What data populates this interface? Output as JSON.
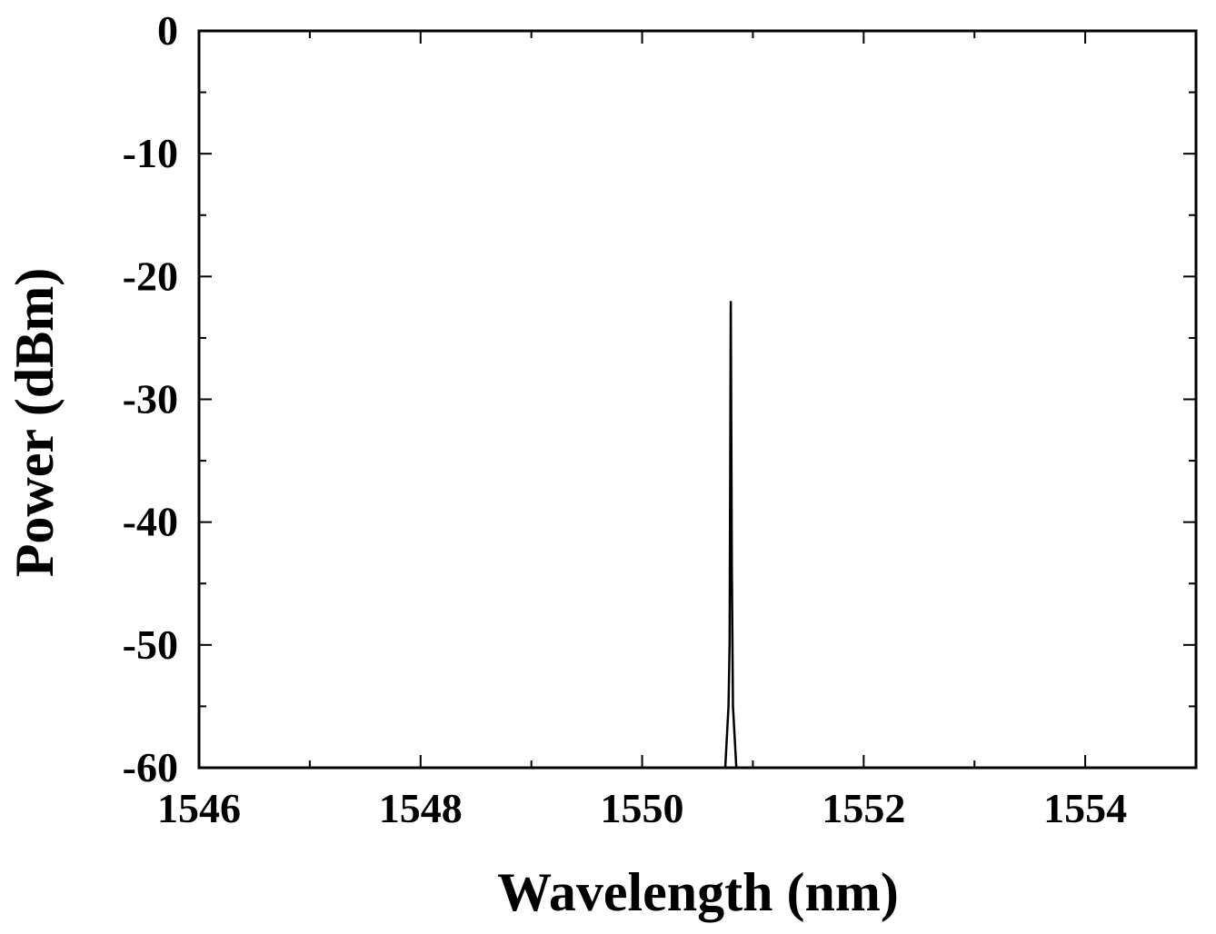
{
  "chart_data": {
    "type": "line",
    "title": "",
    "xlabel": "Wavelength (nm)",
    "ylabel": "Power (dBm)",
    "xlim": [
      1546,
      1555
    ],
    "ylim": [
      -60,
      0
    ],
    "x_ticks": [
      1546,
      1548,
      1550,
      1552,
      1554
    ],
    "x_tick_labels": [
      "1546",
      "1548",
      "1550",
      "1552",
      "1554"
    ],
    "y_ticks": [
      0,
      -10,
      -20,
      -30,
      -40,
      -50,
      -60
    ],
    "y_tick_labels": [
      "0",
      "-10",
      "-20",
      "-30",
      "-40",
      "-50",
      "-60"
    ],
    "grid": false,
    "legend": "none",
    "line_color": "#000000",
    "series": [
      {
        "x": [
          1546.0,
          1550.75,
          1550.78,
          1550.79,
          1550.8,
          1550.81,
          1550.82,
          1550.85,
          1555.0
        ],
        "y": [
          -60,
          -60,
          -55,
          -50,
          -22,
          -44,
          -55,
          -60,
          -60
        ]
      }
    ]
  }
}
